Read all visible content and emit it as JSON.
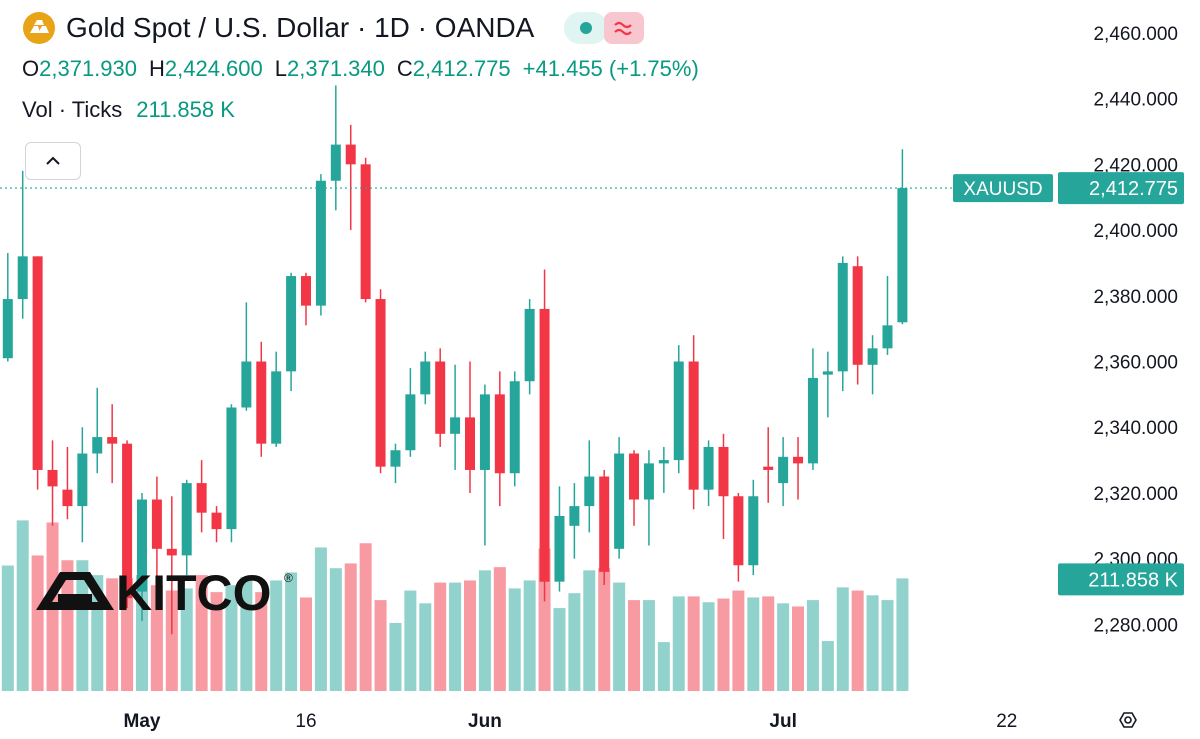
{
  "chart_data": {
    "type": "candlestick",
    "title": "Gold Spot / U.S. Dollar · 1D · OANDA",
    "summary": [
      {
        "key": "O",
        "text": "2,371.930"
      },
      {
        "key": "H",
        "text": "2,424.600"
      },
      {
        "key": "L",
        "text": "2,371.340"
      },
      {
        "key": "C",
        "text": "2,412.775"
      }
    ],
    "change": "+41.455 (+1.75%)",
    "volume_title": "Vol · Ticks",
    "volume_label": "211.858 K",
    "symbol": "XAUUSD",
    "last_label": "2,412.775",
    "watermark": "KITCO",
    "watermark_mark": "®",
    "colors": {
      "up": "#26a69a",
      "down": "#f23645"
    },
    "categories": [
      null,
      null,
      null,
      null,
      null,
      null,
      null,
      null,
      null,
      "May",
      null,
      null,
      null,
      null,
      null,
      null,
      null,
      null,
      null,
      null,
      "16",
      null,
      null,
      null,
      null,
      null,
      null,
      null,
      null,
      null,
      null,
      null,
      "Jun",
      null,
      null,
      null,
      null,
      null,
      null,
      null,
      null,
      null,
      null,
      null,
      null,
      null,
      null,
      null,
      null,
      null,
      null,
      null,
      "Jul",
      null,
      null,
      null,
      null,
      null,
      null,
      null,
      null,
      null,
      null,
      null,
      null,
      null,
      null,
      "22"
    ],
    "open": [
      2361,
      2379,
      2392,
      2327,
      2321,
      2316,
      2332,
      2337,
      2335,
      2290,
      2318,
      2303,
      2301,
      2323,
      2314,
      2309,
      2346,
      2360,
      2335,
      2357,
      2386,
      2377,
      2415,
      2426,
      2420,
      2379,
      2328,
      2333,
      2350,
      2360,
      2338,
      2343,
      2327,
      2350,
      2326,
      2354,
      2376,
      2293,
      2310,
      2316,
      2325,
      2303,
      2332,
      2318,
      2329,
      2330,
      2360,
      2321,
      2334,
      2319,
      2298,
      2328,
      2323,
      2331,
      2329,
      2356,
      2357,
      2389,
      2359,
      2364,
      2371.93,
      null,
      null,
      null,
      null,
      null,
      null,
      null
    ],
    "high": [
      2393,
      2418,
      2392,
      2336,
      2334,
      2340,
      2352,
      2347,
      2336,
      2320,
      2325,
      2319,
      2324,
      2330,
      2316,
      2347,
      2378,
      2366,
      2363,
      2387,
      2387,
      2417,
      2444,
      2432,
      2422,
      2382,
      2335,
      2358,
      2363,
      2364,
      2359,
      2360,
      2353,
      2357,
      2357,
      2379,
      2388,
      2322,
      2323,
      2336,
      2327,
      2337,
      2333,
      2333,
      2334,
      2365,
      2368,
      2336,
      2338,
      2320,
      2324,
      2340,
      2337,
      2337,
      2364,
      2363,
      2392,
      2392,
      2368,
      2386,
      2424.6,
      null,
      null,
      null,
      null,
      null,
      null,
      null
    ],
    "low": [
      2360,
      2373,
      2321,
      2310,
      2312,
      2305,
      2326,
      2323,
      2285,
      2281,
      2290,
      2277,
      2295,
      2308,
      2305,
      2305,
      2345,
      2331,
      2334,
      2351,
      2371,
      2374,
      2406,
      2400,
      2378,
      2326,
      2323,
      2331,
      2347,
      2334,
      2327,
      2320,
      2304,
      2316,
      2322,
      2350,
      2287,
      2290,
      2300,
      2308,
      2292,
      2300,
      2310,
      2304,
      2320,
      2326,
      2315,
      2316,
      2306,
      2293,
      2295,
      2317,
      2316,
      2318,
      2327,
      2343,
      2351,
      2353,
      2350,
      2362,
      2371.34,
      null,
      null,
      null,
      null,
      null,
      null,
      null
    ],
    "close": [
      2379,
      2392,
      2327,
      2322,
      2316,
      2332,
      2337,
      2335,
      2288,
      2318,
      2303,
      2301,
      2323,
      2314,
      2309,
      2346,
      2360,
      2335,
      2357,
      2386,
      2377,
      2415,
      2426,
      2420,
      2379,
      2328,
      2333,
      2350,
      2360,
      2338,
      2343,
      2327,
      2350,
      2326,
      2354,
      2376,
      2293,
      2313,
      2316,
      2325,
      2296,
      2332,
      2318,
      2329,
      2330,
      2360,
      2321,
      2334,
      2319,
      2298,
      2319,
      2327,
      2331,
      2329,
      2355,
      2357,
      2390,
      2359,
      2364,
      2371,
      2412.775,
      null,
      null,
      null,
      null,
      null,
      null,
      null
    ],
    "volume": [
      236000,
      321000,
      255000,
      317000,
      246000,
      246000,
      218000,
      212000,
      212000,
      218000,
      199000,
      189000,
      193000,
      218000,
      186000,
      199000,
      214000,
      186000,
      208000,
      223000,
      176000,
      270000,
      231000,
      240000,
      278000,
      171000,
      128000,
      189000,
      165000,
      204000,
      204000,
      208000,
      227000,
      233000,
      193000,
      208000,
      268000,
      156000,
      184000,
      227000,
      231000,
      204000,
      171000,
      171000,
      92000,
      178000,
      178000,
      167000,
      174000,
      189000,
      176000,
      178000,
      165000,
      159000,
      171000,
      94000,
      195000,
      189000,
      180000,
      171000,
      211858,
      null,
      null,
      null,
      null,
      null,
      null,
      null
    ],
    "ylim": [
      2257,
      2470
    ],
    "yticks": [
      {
        "value": 2280,
        "label": "2,280.000"
      },
      {
        "value": 2300,
        "label": "2,300.000"
      },
      {
        "value": 2320,
        "label": "2,320.000"
      },
      {
        "value": 2340,
        "label": "2,340.000"
      },
      {
        "value": 2360,
        "label": "2,360.000"
      },
      {
        "value": 2380,
        "label": "2,380.000"
      },
      {
        "value": 2400,
        "label": "2,400.000"
      },
      {
        "value": 2420,
        "label": "2,420.000"
      },
      {
        "value": 2440,
        "label": "2,440.000"
      },
      {
        "value": 2460,
        "label": "2,460.000"
      }
    ],
    "vlim": [
      0,
      1300000
    ],
    "grid": false
  }
}
